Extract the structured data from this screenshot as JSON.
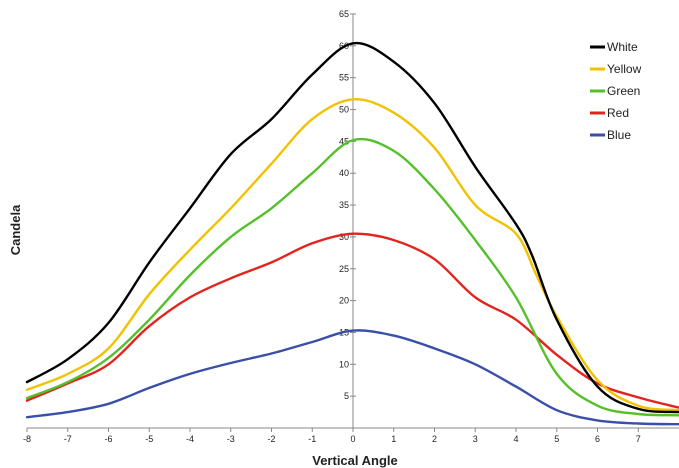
{
  "chart_data": {
    "type": "line",
    "title": "",
    "xlabel": "Vertical Angle",
    "ylabel": "Candela",
    "xlim": [
      -8,
      8
    ],
    "ylim": [
      0,
      65
    ],
    "x_ticks": [
      -8,
      -7,
      -6,
      -5,
      -4,
      -3,
      -2,
      -1,
      0,
      1,
      2,
      3,
      4,
      5,
      6,
      7
    ],
    "y_ticks": [
      5,
      10,
      15,
      20,
      25,
      30,
      35,
      40,
      45,
      50,
      55,
      60,
      65
    ],
    "grid": false,
    "legend_position": "top-right",
    "series": [
      {
        "name": "White",
        "color": "#000000",
        "points": [
          [
            -8,
            7.2
          ],
          [
            -7,
            10.8
          ],
          [
            -6,
            16.5
          ],
          [
            -5,
            26
          ],
          [
            -4,
            34.5
          ],
          [
            -3,
            43
          ],
          [
            -2,
            48.5
          ],
          [
            -1,
            55.5
          ],
          [
            0,
            60.4
          ],
          [
            1,
            57.5
          ],
          [
            2,
            51
          ],
          [
            3,
            41
          ],
          [
            4,
            32
          ],
          [
            4.4,
            27
          ],
          [
            5,
            17
          ],
          [
            6,
            6.5
          ],
          [
            7,
            3
          ],
          [
            8,
            2.5
          ]
        ]
      },
      {
        "name": "Yellow",
        "color": "#F2C200",
        "points": [
          [
            -8,
            6
          ],
          [
            -7,
            8.5
          ],
          [
            -6,
            12.5
          ],
          [
            -5,
            21
          ],
          [
            -4,
            28
          ],
          [
            -3,
            34.5
          ],
          [
            -2,
            41.5
          ],
          [
            -1,
            48.5
          ],
          [
            0,
            51.6
          ],
          [
            1,
            49.5
          ],
          [
            2,
            44
          ],
          [
            3,
            35
          ],
          [
            4,
            30.5
          ],
          [
            4.5,
            24
          ],
          [
            5,
            17.5
          ],
          [
            6,
            7.5
          ],
          [
            7,
            3.5
          ],
          [
            8,
            2.8
          ]
        ]
      },
      {
        "name": "Green",
        "color": "#55C02A",
        "points": [
          [
            -8,
            4.7
          ],
          [
            -7,
            7.2
          ],
          [
            -6,
            11
          ],
          [
            -5,
            17
          ],
          [
            -4,
            24
          ],
          [
            -3,
            30
          ],
          [
            -2,
            34.5
          ],
          [
            -1,
            40
          ],
          [
            0,
            45.2
          ],
          [
            1,
            43.5
          ],
          [
            2,
            37.5
          ],
          [
            3,
            29.5
          ],
          [
            4,
            20.5
          ],
          [
            5,
            8.5
          ],
          [
            6,
            3.5
          ],
          [
            7,
            2.2
          ],
          [
            8,
            2
          ]
        ]
      },
      {
        "name": "Red",
        "color": "#E2241E",
        "points": [
          [
            -8,
            4.3
          ],
          [
            -7,
            7
          ],
          [
            -6,
            10
          ],
          [
            -5,
            16
          ],
          [
            -4,
            20.5
          ],
          [
            -3,
            23.5
          ],
          [
            -2,
            26
          ],
          [
            -1,
            29
          ],
          [
            0,
            30.5
          ],
          [
            1,
            29.5
          ],
          [
            2,
            26.5
          ],
          [
            3,
            20.5
          ],
          [
            4,
            17
          ],
          [
            5,
            11.5
          ],
          [
            6,
            7
          ],
          [
            7,
            4.8
          ],
          [
            8,
            3.2
          ]
        ]
      },
      {
        "name": "Blue",
        "color": "#3A4FA8",
        "points": [
          [
            -8,
            1.7
          ],
          [
            -7,
            2.5
          ],
          [
            -6,
            3.8
          ],
          [
            -5,
            6.3
          ],
          [
            -4,
            8.5
          ],
          [
            -3,
            10.2
          ],
          [
            -2,
            11.7
          ],
          [
            -1,
            13.5
          ],
          [
            0,
            15.3
          ],
          [
            1,
            14.5
          ],
          [
            2,
            12.5
          ],
          [
            3,
            10
          ],
          [
            4,
            6.5
          ],
          [
            5,
            2.8
          ],
          [
            6,
            1.2
          ],
          [
            7,
            0.7
          ],
          [
            8,
            0.6
          ]
        ]
      }
    ]
  }
}
